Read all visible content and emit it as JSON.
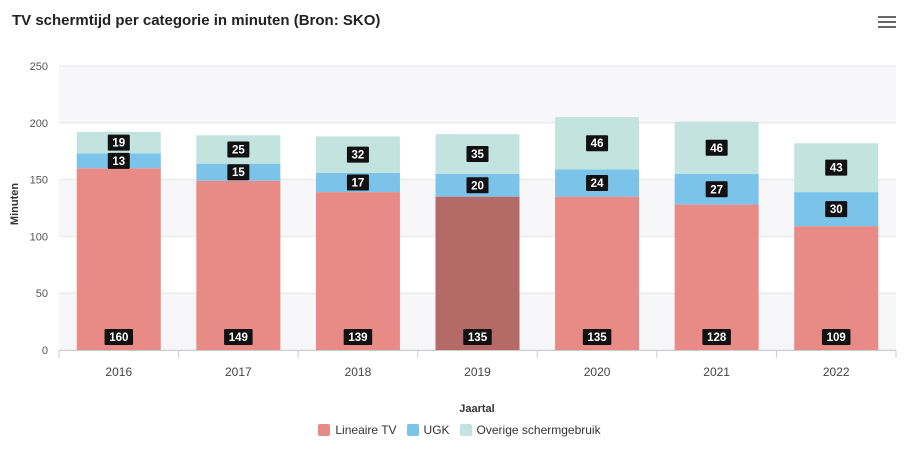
{
  "title": "TV schermtijd per categorie in minuten (Bron: SKO)",
  "menu_icon": "hamburger-menu-icon",
  "chart_data": {
    "type": "bar",
    "stacked": true,
    "categories": [
      "2016",
      "2017",
      "2018",
      "2019",
      "2020",
      "2021",
      "2022"
    ],
    "series": [
      {
        "name": "Lineaire TV",
        "values": [
          160,
          149,
          139,
          135,
          135,
          128,
          109
        ],
        "color": "#e88a86"
      },
      {
        "name": "UGK",
        "values": [
          13,
          15,
          17,
          20,
          24,
          27,
          30
        ],
        "color": "#7cc3ea"
      },
      {
        "name": "Overige schermgebruik",
        "values": [
          19,
          25,
          32,
          35,
          46,
          46,
          43
        ],
        "color": "#c3e3df"
      }
    ],
    "highlight": {
      "category": "2019",
      "series": "Lineaire TV",
      "color": "#b56a68"
    },
    "xlabel": "Jaartal",
    "ylabel": "Minuten",
    "ylim": [
      0,
      250
    ],
    "yticks": [
      0,
      50,
      100,
      150,
      200,
      250
    ],
    "grid": true,
    "legend_position": "bottom-center"
  }
}
